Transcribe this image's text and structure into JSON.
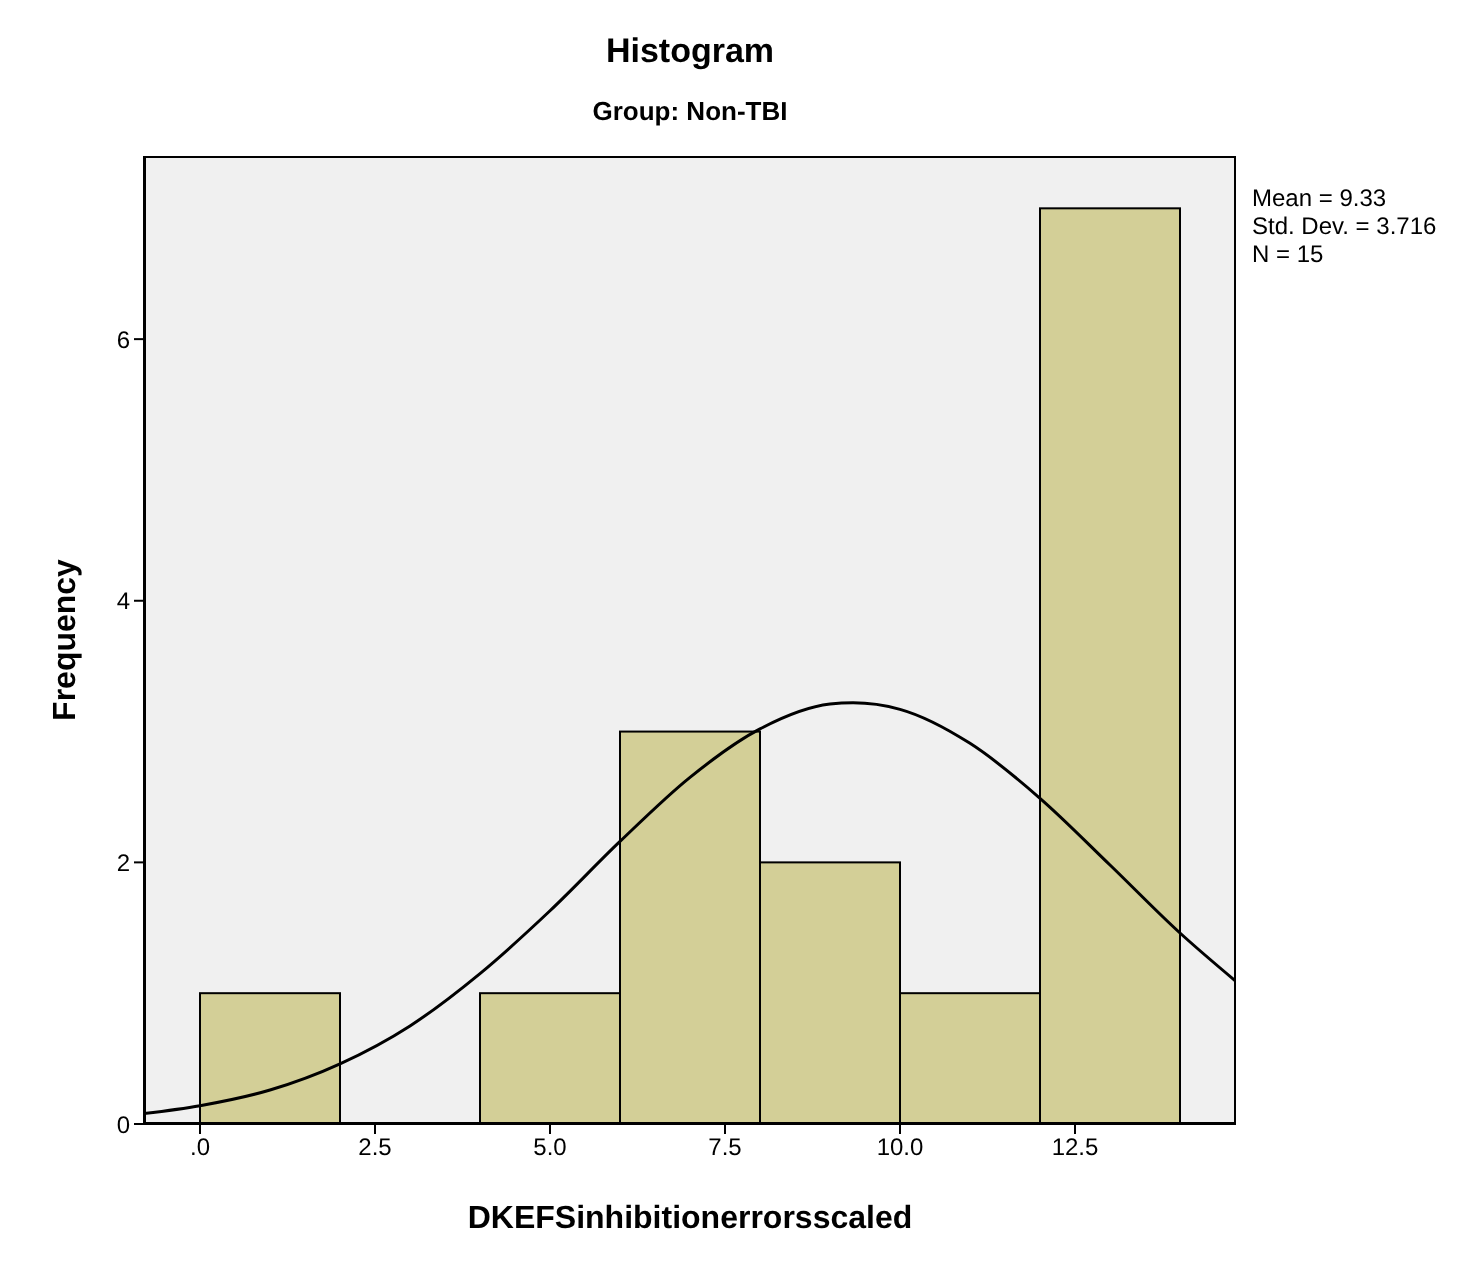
{
  "chart_data": {
    "type": "histogram",
    "title": "Histogram",
    "subtitle": "Group: Non-TBI",
    "xlabel": "DKEFSinhibitionerrorsscaled",
    "ylabel": "Frequency",
    "bins": [
      0,
      2,
      4,
      6,
      8,
      10,
      12,
      14
    ],
    "series": [
      {
        "color": "#d3cf97",
        "values": [
          1,
          0,
          1,
          3,
          2,
          1,
          7
        ]
      },
      {
        "type": "line",
        "color": "#000000",
        "x": [
          -0.8,
          0,
          1,
          2,
          3,
          4,
          5,
          6,
          7,
          8,
          9,
          9.33,
          10,
          11,
          12,
          13,
          14,
          14.8
        ],
        "values": [
          0.08,
          0.14,
          0.26,
          0.46,
          0.75,
          1.15,
          1.63,
          2.16,
          2.65,
          3.02,
          3.21,
          3.22,
          3.17,
          2.91,
          2.49,
          1.98,
          1.46,
          1.09
        ]
      }
    ],
    "xlim": [
      -0.8,
      14.8
    ],
    "xticks": [
      {
        "value": 0,
        "label": ".0"
      },
      {
        "value": 2.5,
        "label": "2.5"
      },
      {
        "value": 5,
        "label": "5.0"
      },
      {
        "value": 7.5,
        "label": "7.5"
      },
      {
        "value": 10,
        "label": "10.0"
      },
      {
        "value": 12.5,
        "label": "12.5"
      }
    ],
    "ylim": [
      0,
      7.4
    ],
    "yticks": [
      0,
      2,
      4,
      6
    ],
    "annotations": [
      "Mean = 9.33",
      "Std. Dev. = 3.716",
      "N = 15"
    ]
  }
}
